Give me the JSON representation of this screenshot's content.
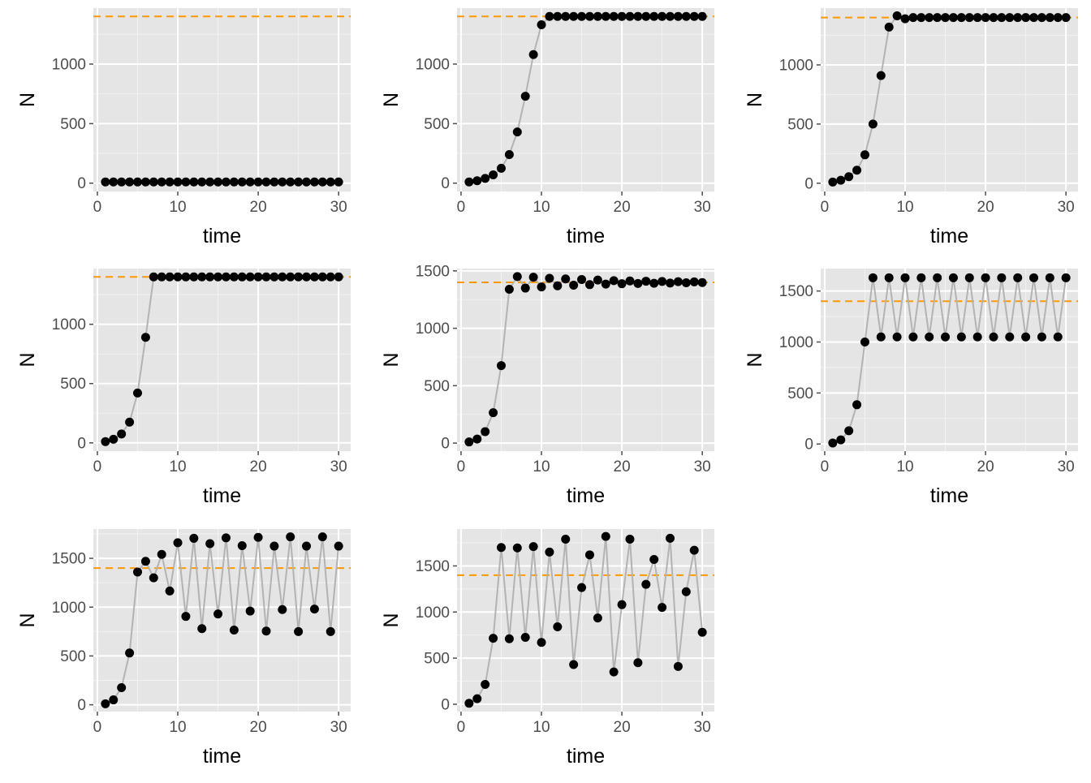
{
  "colors": {
    "panel_background": "#e5e5e5",
    "grid_major": "#ffffff",
    "grid_minor": "#f2f2f2",
    "line": "#b3b3b3",
    "point": "#000000",
    "reference": "#ff9900",
    "tick": "#4d4d4d"
  },
  "chart_data": [
    {
      "type": "line",
      "xlabel": "time",
      "ylabel": "N",
      "xlim": [
        -0.5,
        31.5
      ],
      "ylim": [
        -70,
        1470
      ],
      "xticks": [
        0,
        10,
        20,
        30
      ],
      "yticks": [
        0,
        500,
        1000
      ],
      "reference_line": 1400,
      "grid": true,
      "series": [
        {
          "x": [
            1,
            2,
            3,
            4,
            5,
            6,
            7,
            8,
            9,
            10,
            11,
            12,
            13,
            14,
            15,
            16,
            17,
            18,
            19,
            20,
            21,
            22,
            23,
            24,
            25,
            26,
            27,
            28,
            29,
            30
          ],
          "values": [
            10,
            10,
            10,
            10,
            10,
            10,
            10,
            10,
            10,
            10,
            10,
            10,
            10,
            10,
            10,
            10,
            10,
            10,
            10,
            10,
            10,
            10,
            10,
            10,
            10,
            10,
            10,
            10,
            10,
            10
          ]
        }
      ]
    },
    {
      "type": "line",
      "xlabel": "time",
      "ylabel": "N",
      "xlim": [
        -0.5,
        31.5
      ],
      "ylim": [
        -70,
        1470
      ],
      "xticks": [
        0,
        10,
        20,
        30
      ],
      "yticks": [
        0,
        500,
        1000
      ],
      "reference_line": 1400,
      "grid": true,
      "series": [
        {
          "x": [
            1,
            2,
            3,
            4,
            5,
            6,
            7,
            8,
            9,
            10,
            11,
            12,
            13,
            14,
            15,
            16,
            17,
            18,
            19,
            20,
            21,
            22,
            23,
            24,
            25,
            26,
            27,
            28,
            29,
            30
          ],
          "values": [
            10,
            20,
            40,
            70,
            125,
            240,
            430,
            730,
            1080,
            1330,
            1400,
            1400,
            1400,
            1400,
            1400,
            1400,
            1400,
            1400,
            1400,
            1400,
            1400,
            1400,
            1400,
            1400,
            1400,
            1400,
            1400,
            1400,
            1400,
            1400
          ]
        }
      ]
    },
    {
      "type": "line",
      "xlabel": "time",
      "ylabel": "N",
      "xlim": [
        -0.5,
        31.5
      ],
      "ylim": [
        -70,
        1480
      ],
      "xticks": [
        0,
        10,
        20,
        30
      ],
      "yticks": [
        0,
        500,
        1000
      ],
      "reference_line": 1400,
      "grid": true,
      "series": [
        {
          "x": [
            1,
            2,
            3,
            4,
            5,
            6,
            7,
            8,
            9,
            10,
            11,
            12,
            13,
            14,
            15,
            16,
            17,
            18,
            19,
            20,
            21,
            22,
            23,
            24,
            25,
            26,
            27,
            28,
            29,
            30
          ],
          "values": [
            10,
            25,
            55,
            110,
            240,
            500,
            910,
            1320,
            1415,
            1390,
            1400,
            1400,
            1400,
            1400,
            1400,
            1400,
            1400,
            1400,
            1400,
            1400,
            1400,
            1400,
            1400,
            1400,
            1400,
            1400,
            1400,
            1400,
            1400,
            1400
          ]
        }
      ]
    },
    {
      "type": "line",
      "xlabel": "time",
      "ylabel": "N",
      "xlim": [
        -0.5,
        31.5
      ],
      "ylim": [
        -70,
        1470
      ],
      "xticks": [
        0,
        10,
        20,
        30
      ],
      "yticks": [
        0,
        500,
        1000
      ],
      "reference_line": 1400,
      "grid": true,
      "series": [
        {
          "x": [
            1,
            2,
            3,
            4,
            5,
            6,
            7,
            8,
            9,
            10,
            11,
            12,
            13,
            14,
            15,
            16,
            17,
            18,
            19,
            20,
            21,
            22,
            23,
            24,
            25,
            26,
            27,
            28,
            29,
            30
          ],
          "values": [
            10,
            30,
            75,
            175,
            420,
            890,
            1400,
            1400,
            1400,
            1400,
            1400,
            1400,
            1400,
            1400,
            1400,
            1400,
            1400,
            1400,
            1400,
            1400,
            1400,
            1400,
            1400,
            1400,
            1400,
            1400,
            1400,
            1400,
            1400,
            1400
          ]
        }
      ]
    },
    {
      "type": "line",
      "xlabel": "time",
      "ylabel": "N",
      "xlim": [
        -0.5,
        31.5
      ],
      "ylim": [
        -70,
        1520
      ],
      "xticks": [
        0,
        10,
        20,
        30
      ],
      "yticks": [
        0,
        500,
        1000,
        1500
      ],
      "reference_line": 1400,
      "grid": true,
      "series": [
        {
          "x": [
            1,
            2,
            3,
            4,
            5,
            6,
            7,
            8,
            9,
            10,
            11,
            12,
            13,
            14,
            15,
            16,
            17,
            18,
            19,
            20,
            21,
            22,
            23,
            24,
            25,
            26,
            27,
            28,
            29,
            30
          ],
          "values": [
            10,
            35,
            100,
            265,
            675,
            1340,
            1450,
            1350,
            1445,
            1360,
            1435,
            1370,
            1430,
            1375,
            1425,
            1380,
            1420,
            1385,
            1415,
            1388,
            1412,
            1390,
            1410,
            1392,
            1408,
            1394,
            1406,
            1396,
            1404,
            1398
          ]
        }
      ]
    },
    {
      "type": "line",
      "xlabel": "time",
      "ylabel": "N",
      "xlim": [
        -0.5,
        31.5
      ],
      "ylim": [
        -70,
        1720
      ],
      "xticks": [
        0,
        10,
        20,
        30
      ],
      "yticks": [
        0,
        500,
        1000,
        1500
      ],
      "reference_line": 1400,
      "grid": true,
      "series": [
        {
          "x": [
            1,
            2,
            3,
            4,
            5,
            6,
            7,
            8,
            9,
            10,
            11,
            12,
            13,
            14,
            15,
            16,
            17,
            18,
            19,
            20,
            21,
            22,
            23,
            24,
            25,
            26,
            27,
            28,
            29,
            30
          ],
          "values": [
            10,
            40,
            130,
            385,
            1000,
            1630,
            1050,
            1630,
            1050,
            1630,
            1050,
            1630,
            1050,
            1630,
            1050,
            1630,
            1050,
            1630,
            1050,
            1630,
            1050,
            1630,
            1050,
            1630,
            1050,
            1630,
            1050,
            1630,
            1050,
            1630
          ]
        }
      ]
    },
    {
      "type": "line",
      "xlabel": "time",
      "ylabel": "N",
      "xlim": [
        -0.5,
        31.5
      ],
      "ylim": [
        -70,
        1800
      ],
      "xticks": [
        0,
        10,
        20,
        30
      ],
      "yticks": [
        0,
        500,
        1000,
        1500
      ],
      "reference_line": 1400,
      "grid": true,
      "series": [
        {
          "x": [
            1,
            2,
            3,
            4,
            5,
            6,
            7,
            8,
            9,
            10,
            11,
            12,
            13,
            14,
            15,
            16,
            17,
            18,
            19,
            20,
            21,
            22,
            23,
            24,
            25,
            26,
            27,
            28,
            29,
            30
          ],
          "values": [
            10,
            50,
            175,
            530,
            1360,
            1470,
            1300,
            1540,
            1165,
            1660,
            905,
            1705,
            780,
            1650,
            930,
            1710,
            765,
            1630,
            960,
            1715,
            755,
            1625,
            975,
            1720,
            750,
            1625,
            980,
            1720,
            750,
            1625
          ]
        }
      ]
    },
    {
      "type": "line",
      "xlabel": "time",
      "ylabel": "N",
      "xlim": [
        -0.5,
        31.5
      ],
      "ylim": [
        -80,
        1900
      ],
      "xticks": [
        0,
        10,
        20,
        30
      ],
      "yticks": [
        0,
        500,
        1000,
        1500
      ],
      "reference_line": 1400,
      "grid": true,
      "series": [
        {
          "x": [
            1,
            2,
            3,
            4,
            5,
            6,
            7,
            8,
            9,
            10,
            11,
            12,
            13,
            14,
            15,
            16,
            17,
            18,
            19,
            20,
            21,
            22,
            23,
            24,
            25,
            26,
            27,
            28,
            29,
            30
          ],
          "values": [
            10,
            60,
            215,
            715,
            1700,
            710,
            1695,
            725,
            1710,
            670,
            1650,
            840,
            1790,
            430,
            1265,
            1620,
            935,
            1820,
            350,
            1080,
            1790,
            450,
            1300,
            1570,
            1050,
            1800,
            410,
            1220,
            1670,
            780
          ]
        }
      ]
    }
  ]
}
